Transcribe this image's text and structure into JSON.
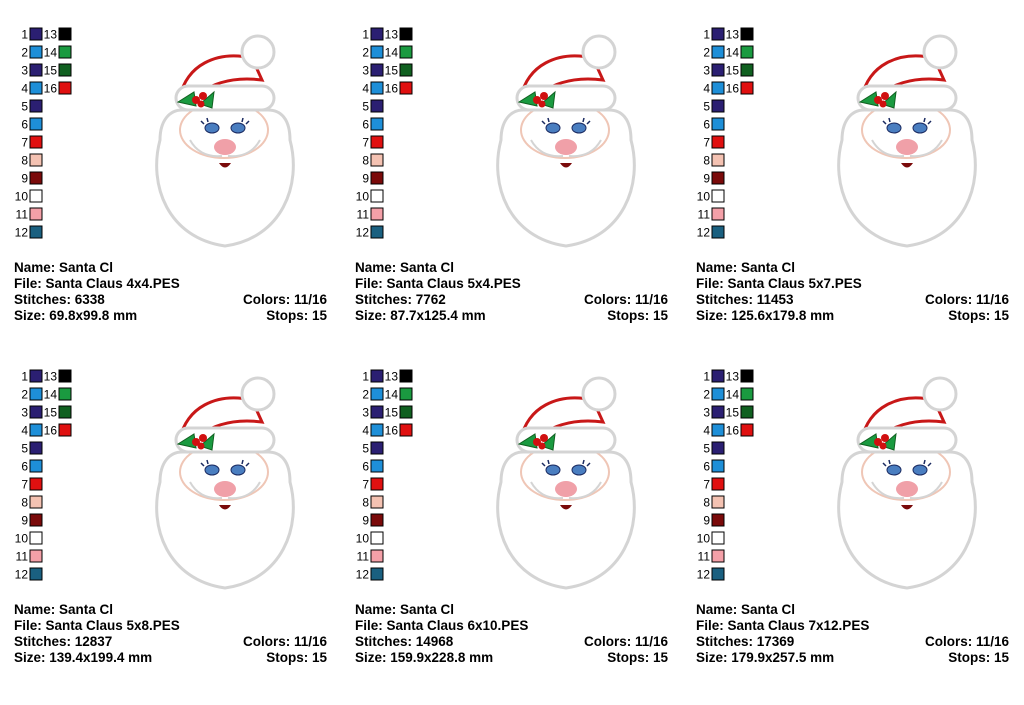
{
  "palette": [
    {
      "number": 1,
      "color": "#2b1f72"
    },
    {
      "number": 2,
      "color": "#1e8fd8"
    },
    {
      "number": 3,
      "color": "#2b1f72"
    },
    {
      "number": 4,
      "color": "#1e8fd8"
    },
    {
      "number": 5,
      "color": "#2b1f72"
    },
    {
      "number": 6,
      "color": "#1e8fd8"
    },
    {
      "number": 7,
      "color": "#e01010"
    },
    {
      "number": 8,
      "color": "#f4c2b2"
    },
    {
      "number": 9,
      "color": "#7a0a0a"
    },
    {
      "number": 10,
      "color": "#ffffff"
    },
    {
      "number": 11,
      "color": "#f4a0a8"
    },
    {
      "number": 12,
      "color": "#1a6080"
    },
    {
      "number": 13,
      "color": "#000000"
    },
    {
      "number": 14,
      "color": "#1a9a40"
    },
    {
      "number": 15,
      "color": "#106020"
    },
    {
      "number": 16,
      "color": "#e01010"
    }
  ],
  "panels": [
    {
      "name": "Name: Santa Cl",
      "file": "File: Santa Claus 4x4.PES",
      "stitches": "Stitches: 6338",
      "colors": "Colors: 11/16",
      "size": "Size: 69.8x99.8 mm",
      "stops": "Stops: 15"
    },
    {
      "name": "Name: Santa Cl",
      "file": "File: Santa Claus 5x4.PES",
      "stitches": "Stitches: 7762",
      "colors": "Colors: 11/16",
      "size": "Size: 87.7x125.4 mm",
      "stops": "Stops: 15"
    },
    {
      "name": "Name: Santa Cl",
      "file": "File: Santa Claus 5x7.PES",
      "stitches": "Stitches: 11453",
      "colors": "Colors: 11/16",
      "size": "Size: 125.6x179.8 mm",
      "stops": "Stops: 15"
    },
    {
      "name": "Name: Santa Cl",
      "file": "File: Santa Claus 5x8.PES",
      "stitches": "Stitches: 12837",
      "colors": "Colors: 11/16",
      "size": "Size: 139.4x199.4 mm",
      "stops": "Stops: 15"
    },
    {
      "name": "Name: Santa Cl",
      "file": "File: Santa Claus 6x10.PES",
      "stitches": "Stitches: 14968",
      "colors": "Colors: 11/16",
      "size": "Size: 159.9x228.8 mm",
      "stops": "Stops: 15"
    },
    {
      "name": "Name: Santa Cl",
      "file": "File: Santa Claus 7x12.PES",
      "stitches": "Stitches: 17369",
      "colors": "Colors: 11/16",
      "size": "Size: 179.9x257.5 mm",
      "stops": "Stops: 15"
    }
  ]
}
